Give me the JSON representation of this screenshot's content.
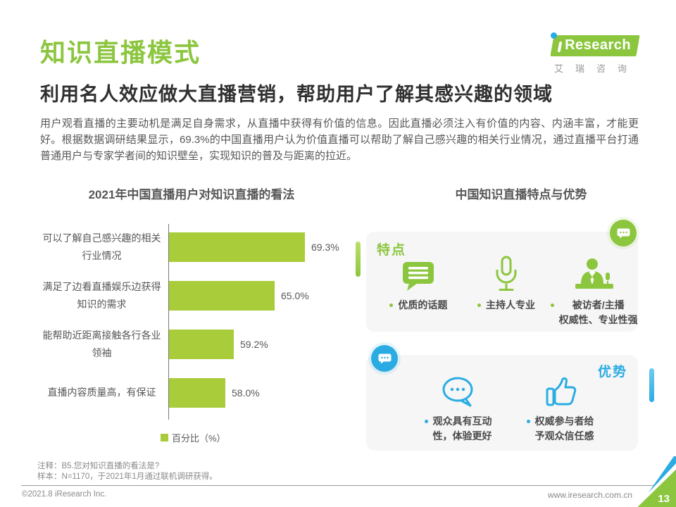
{
  "header": {
    "title": "知识直播模式",
    "subtitle": "利用名人效应做大直播营销，帮助用户了解其感兴趣的领域",
    "logo": {
      "brand": "Research",
      "brand_cn": "艾瑞咨询"
    }
  },
  "intro": "用户观看直播的主要动机是满足自身需求，从直播中获得有价值的信息。因此直播必须注入有价值的内容、内涵丰富，才能更好。根据数据调研结果显示，69.3%的中国直播用户认为价值直播可以帮助了解自己感兴趣的相关行业情况，通过直播平台打通普通用户与专家学者间的知识壁垒，实现知识的普及与距离的拉近。",
  "chart_data": {
    "type": "bar",
    "orientation": "horizontal",
    "title": "2021年中国直播用户对知识直播的看法",
    "categories": [
      "可以了解自己感兴趣的相关\n行业情况",
      "满足了边看直播娱乐边获得\n知识的需求",
      "能帮助近距离接触各行各业\n领袖",
      "直播内容质量高，有保证"
    ],
    "values": [
      69.3,
      65.0,
      59.2,
      58.0
    ],
    "value_labels": [
      "69.3%",
      "65.0%",
      "59.2%",
      "58.0%"
    ],
    "legend": "百分比（%）",
    "xlim": [
      50,
      75
    ],
    "grid": false,
    "bar_color": "#A9CC3B"
  },
  "right_panel": {
    "title": "中国知识直播特点与优势",
    "feature_box": {
      "label": "特点",
      "corner_icon": "speech-bubble-badge-icon",
      "items": [
        {
          "icon": "topic-bubble-icon",
          "label": "优质的话题"
        },
        {
          "icon": "microphone-icon",
          "label": "主持人专业"
        },
        {
          "icon": "anchor-desk-icon",
          "label": "被访者/主播\n权威性、专业性强"
        }
      ]
    },
    "advantage_box": {
      "label": "优势",
      "corner_icon": "speech-bubble-badge-icon",
      "items": [
        {
          "icon": "comment-dots-icon",
          "label": "观众具有互动\n性，体验更好"
        },
        {
          "icon": "thumbs-up-icon",
          "label": "权威参与者给\n予观众信任感"
        }
      ]
    }
  },
  "footer": {
    "note1": "注释：B5.您对知识直播的看法是?",
    "note2": "样本：N=1170，于2021年1月通过联机调研获得。",
    "copyright": "©2021.8 iResearch Inc.",
    "website": "www.iresearch.com.cn",
    "page_number": "13"
  },
  "colors": {
    "green": "#8CC63F",
    "bar_green": "#A9CC3B",
    "blue": "#2AACE3",
    "text_gray": "#595757",
    "box_bg": "#F6F6F6",
    "footer_gray": "#8A8A8A"
  }
}
